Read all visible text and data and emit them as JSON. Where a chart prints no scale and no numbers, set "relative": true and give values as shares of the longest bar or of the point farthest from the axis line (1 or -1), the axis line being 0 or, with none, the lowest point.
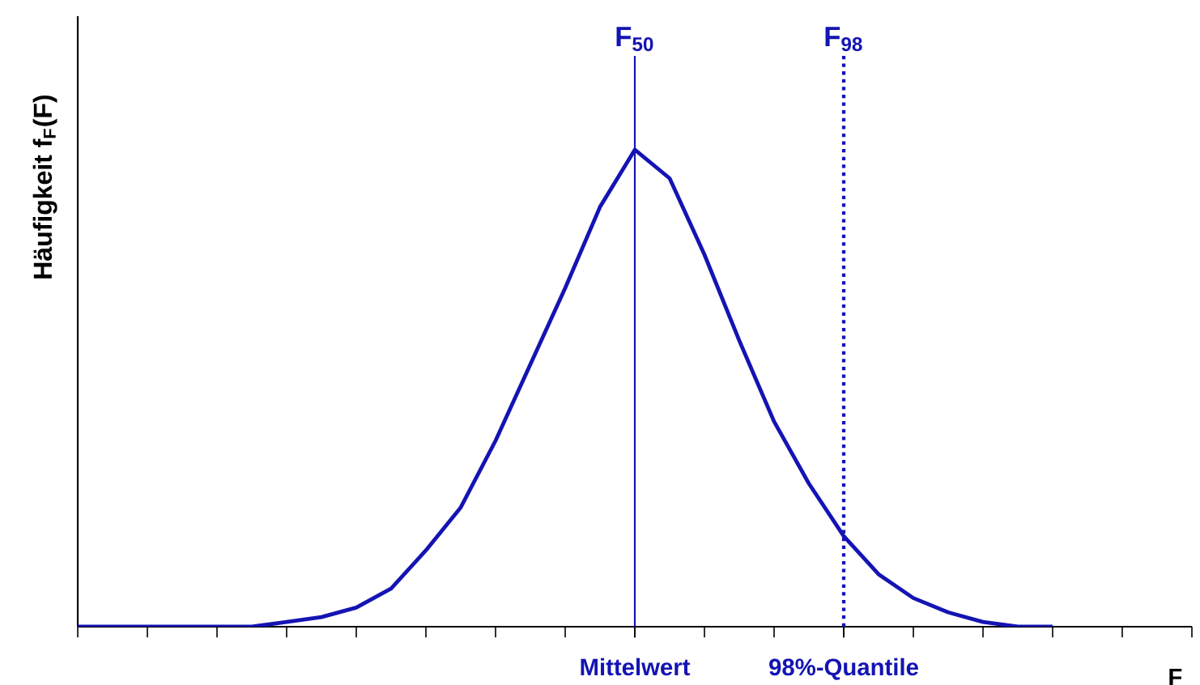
{
  "chart_data": {
    "type": "line",
    "relative": true,
    "xlabel": "F",
    "ylabel": "Häufigkeit  f$_{F}$(F)",
    "categories": [
      null,
      null,
      null,
      null,
      null,
      null,
      null,
      null,
      null,
      null,
      null,
      null,
      null,
      null,
      null,
      null,
      "Mittelwert",
      null,
      null,
      null,
      null,
      null,
      "98%-Quantile",
      null,
      null,
      null,
      null,
      null,
      null,
      null,
      null,
      null,
      null
    ],
    "series": [
      {
        "color": "#1414b4",
        "values": [
          0,
          0,
          0,
          0,
          0,
          0.0,
          0.01,
          0.02,
          0.04,
          0.08,
          0.16,
          0.25,
          0.39,
          0.55,
          0.71,
          0.88,
          1.0,
          0.94,
          0.78,
          0.6,
          0.43,
          0.3,
          0.19,
          0.11,
          0.06,
          0.03,
          0.01,
          0.0,
          0,
          null,
          null,
          null,
          null
        ]
      }
    ],
    "ref_lines": [
      {
        "axis": "x",
        "value": "Mittelwert",
        "label": "F$_{50}$",
        "color": "#1414b4",
        "line_style": "solid"
      },
      {
        "axis": "x",
        "value": "98%-Quantile",
        "label": "F$_{98}$",
        "color": "#1414b4",
        "line_style": "dotted"
      }
    ]
  }
}
